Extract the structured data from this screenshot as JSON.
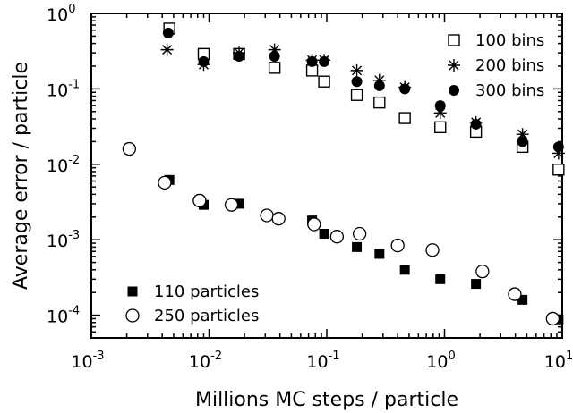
{
  "chart_data": {
    "type": "scatter",
    "xlabel": "Millions MC steps / particle",
    "ylabel": "Average error / particle",
    "x_scale": "log",
    "y_scale": "log",
    "xlim": [
      0.001,
      10
    ],
    "ylim": [
      5e-05,
      1
    ],
    "x_ticks": [
      {
        "value": 0.001,
        "base": "10",
        "exp": "-3"
      },
      {
        "value": 0.01,
        "base": "10",
        "exp": "-2"
      },
      {
        "value": 0.1,
        "base": "10",
        "exp": "-1"
      },
      {
        "value": 1,
        "base": "10",
        "exp": "0"
      },
      {
        "value": 10,
        "base": "10",
        "exp": "1"
      }
    ],
    "y_ticks": [
      {
        "value": 1,
        "base": "10",
        "exp": "0"
      },
      {
        "value": 0.1,
        "base": "10",
        "exp": "-1"
      },
      {
        "value": 0.01,
        "base": "10",
        "exp": "-2"
      },
      {
        "value": 0.001,
        "base": "10",
        "exp": "-3"
      },
      {
        "value": 0.0001,
        "base": "10",
        "exp": "-4"
      }
    ],
    "grid": false,
    "legend_top": {
      "placement": "top-right",
      "entries": [
        "100 bins",
        "200 bins",
        "300 bins"
      ]
    },
    "legend_bottom": {
      "placement": "bottom-left",
      "entries": [
        "110 particles",
        "250 particles"
      ]
    },
    "series": [
      {
        "name": "100 bins",
        "marker": "open-square",
        "points": [
          [
            0.0046,
            0.63
          ],
          [
            0.009,
            0.29
          ],
          [
            0.018,
            0.29
          ],
          [
            0.036,
            0.19
          ],
          [
            0.075,
            0.175
          ],
          [
            0.095,
            0.125
          ],
          [
            0.18,
            0.083
          ],
          [
            0.28,
            0.066
          ],
          [
            0.46,
            0.041
          ],
          [
            0.92,
            0.031
          ],
          [
            1.85,
            0.027
          ],
          [
            4.6,
            0.017
          ],
          [
            9.3,
            0.0085
          ]
        ]
      },
      {
        "name": "200 bins",
        "marker": "asterisk",
        "points": [
          [
            0.0044,
            0.33
          ],
          [
            0.009,
            0.21
          ],
          [
            0.018,
            0.3
          ],
          [
            0.036,
            0.33
          ],
          [
            0.075,
            0.24
          ],
          [
            0.095,
            0.24
          ],
          [
            0.18,
            0.175
          ],
          [
            0.28,
            0.13
          ],
          [
            0.46,
            0.105
          ],
          [
            0.92,
            0.048
          ],
          [
            1.85,
            0.036
          ],
          [
            4.6,
            0.025
          ],
          [
            9.3,
            0.014
          ]
        ]
      },
      {
        "name": "300 bins",
        "marker": "filled-circle",
        "points": [
          [
            0.0045,
            0.55
          ],
          [
            0.009,
            0.23
          ],
          [
            0.018,
            0.27
          ],
          [
            0.036,
            0.27
          ],
          [
            0.075,
            0.23
          ],
          [
            0.095,
            0.23
          ],
          [
            0.18,
            0.125
          ],
          [
            0.28,
            0.11
          ],
          [
            0.46,
            0.1
          ],
          [
            0.92,
            0.06
          ],
          [
            1.85,
            0.034
          ],
          [
            4.6,
            0.02
          ],
          [
            9.3,
            0.017
          ]
        ]
      },
      {
        "name": "110 particles",
        "marker": "filled-square",
        "points": [
          [
            0.0046,
            0.0062
          ],
          [
            0.009,
            0.0029
          ],
          [
            0.018,
            0.003
          ],
          [
            0.075,
            0.0018
          ],
          [
            0.095,
            0.0012
          ],
          [
            0.18,
            0.0008
          ],
          [
            0.28,
            0.00065
          ],
          [
            0.46,
            0.0004
          ],
          [
            0.92,
            0.0003
          ],
          [
            1.85,
            0.00026
          ],
          [
            4.6,
            0.00016
          ],
          [
            9.3,
            8.8e-05
          ]
        ]
      },
      {
        "name": "250 particles",
        "marker": "open-circle",
        "points": [
          [
            0.0021,
            0.016
          ],
          [
            0.0042,
            0.0057
          ],
          [
            0.0083,
            0.0033
          ],
          [
            0.0155,
            0.0029
          ],
          [
            0.031,
            0.0021
          ],
          [
            0.039,
            0.0019
          ],
          [
            0.078,
            0.0016
          ],
          [
            0.122,
            0.0011
          ],
          [
            0.19,
            0.0012
          ],
          [
            0.4,
            0.00084
          ],
          [
            0.79,
            0.00073
          ],
          [
            2.1,
            0.00038
          ],
          [
            3.95,
            0.00019
          ],
          [
            8.3,
            9e-05
          ]
        ]
      }
    ]
  }
}
